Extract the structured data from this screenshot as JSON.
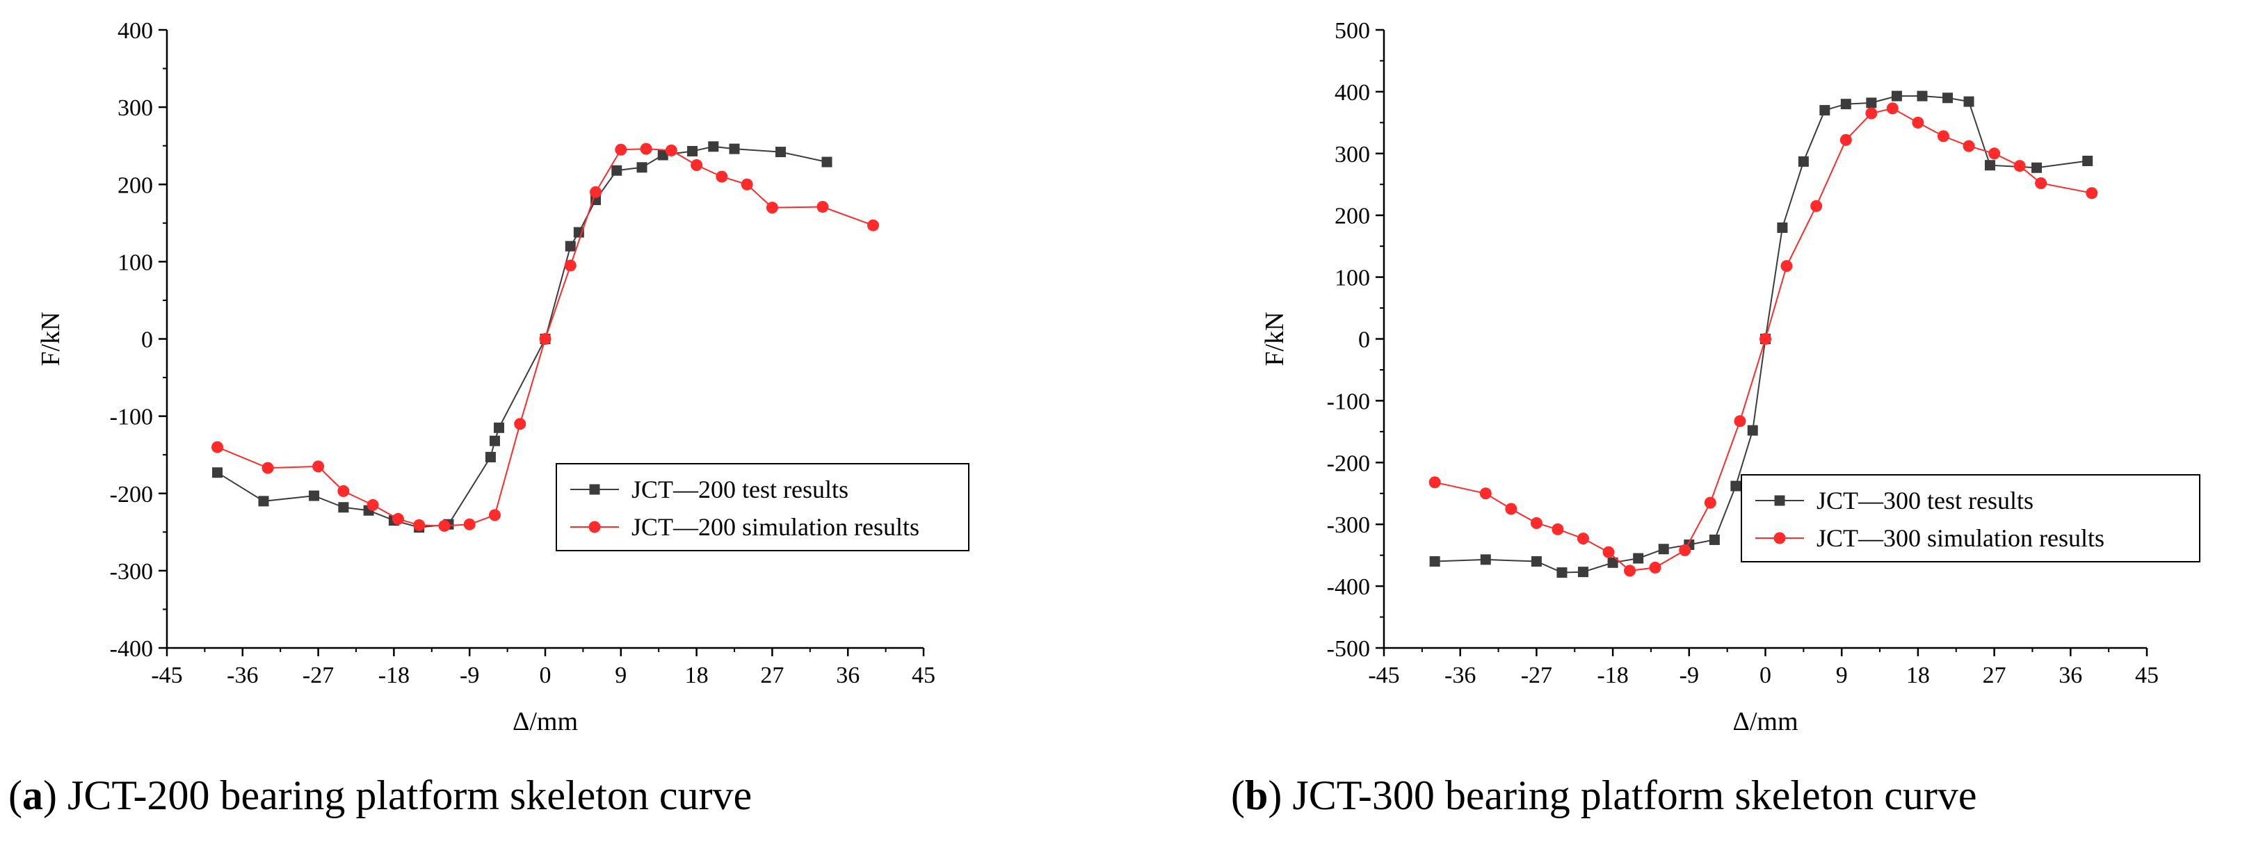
{
  "charts": [
    {
      "caption_letter": "a",
      "caption_text": "JCT-200 bearing platform skeleton curve"
    },
    {
      "caption_letter": "b",
      "caption_text": "JCT-300 bearing platform skeleton curve"
    }
  ],
  "chart_data": [
    {
      "type": "line",
      "title": "",
      "xlabel": "Δ/mm",
      "ylabel": "F/kN",
      "xlim": [
        -45,
        45
      ],
      "ylim": [
        -400,
        400
      ],
      "xticks": [
        "-45",
        "-36",
        "-27",
        "-18",
        "-9",
        "0",
        "9",
        "18",
        "27",
        "36",
        "45"
      ],
      "yticks": [
        "400",
        "300",
        "200",
        "100",
        "0",
        "-100",
        "-200",
        "-300",
        "-400"
      ],
      "legend_position": "lower-right",
      "series": [
        {
          "name": "JCT—200 test results",
          "color": "#3c3c3c",
          "marker": "square",
          "x": [
            -39,
            -33.5,
            -27.5,
            -24,
            -21,
            -18,
            -15,
            -11.5,
            -6.5,
            -6,
            -5.5,
            0,
            3,
            4,
            6,
            8.5,
            11.5,
            14,
            17.5,
            20,
            22.5,
            28,
            33.5
          ],
          "y": [
            -173,
            -210,
            -203,
            -218,
            -222,
            -235,
            -244,
            -240,
            -153,
            -132,
            -115,
            0,
            120,
            138,
            180,
            218,
            222,
            238,
            243,
            249,
            246,
            242,
            229
          ]
        },
        {
          "name": "JCT—200 simulation results",
          "color": "#ff2a2a",
          "marker": "circle",
          "x": [
            -39,
            -33,
            -27,
            -24,
            -20.5,
            -17.5,
            -15,
            -12,
            -9,
            -6,
            -3,
            0,
            3,
            6,
            9,
            12,
            15,
            18,
            21,
            24,
            27,
            33,
            39
          ],
          "y": [
            -140,
            -167,
            -165,
            -197,
            -215,
            -233,
            -241,
            -242,
            -240,
            -228,
            -110,
            0,
            95,
            190,
            245,
            246,
            244,
            225,
            210,
            200,
            170,
            171,
            147
          ]
        }
      ]
    },
    {
      "type": "line",
      "title": "",
      "xlabel": "Δ/mm",
      "ylabel": "F/kN",
      "xlim": [
        -45,
        45
      ],
      "ylim": [
        -500,
        500
      ],
      "xticks": [
        "-45",
        "-36",
        "-27",
        "-18",
        "-9",
        "0",
        "9",
        "18",
        "27",
        "36",
        "45"
      ],
      "yticks": [
        "500",
        "400",
        "300",
        "200",
        "100",
        "0",
        "-100",
        "-200",
        "-300",
        "-400",
        "-500"
      ],
      "legend_position": "lower-right",
      "series": [
        {
          "name": "JCT—300 test results",
          "color": "#3c3c3c",
          "marker": "square",
          "x": [
            -39,
            -33,
            -27,
            -24,
            -21.5,
            -18,
            -15,
            -12,
            -9,
            -6,
            -3.5,
            -1.5,
            0,
            2,
            4.5,
            7,
            9.5,
            12.5,
            15.5,
            18.5,
            21.5,
            24,
            26.5,
            32,
            38
          ],
          "y": [
            -360,
            -357,
            -360,
            -378,
            -377,
            -362,
            -355,
            -340,
            -333,
            -325,
            -238,
            -148,
            0,
            180,
            287,
            370,
            380,
            382,
            393,
            393,
            390,
            384,
            281,
            277,
            288
          ]
        },
        {
          "name": "JCT—300 simulation results",
          "color": "#ff2a2a",
          "marker": "circle",
          "x": [
            -39,
            -33,
            -30,
            -27,
            -24.5,
            -21.5,
            -18.5,
            -16,
            -13,
            -9.5,
            -6.5,
            -3,
            0,
            2.5,
            6,
            9.5,
            12.5,
            15,
            18,
            21,
            24,
            27,
            30,
            32.5,
            38.5
          ],
          "y": [
            -232,
            -250,
            -275,
            -298,
            -308,
            -323,
            -345,
            -375,
            -370,
            -342,
            -265,
            -133,
            0,
            118,
            215,
            322,
            365,
            373,
            350,
            328,
            312,
            300,
            280,
            252,
            236
          ]
        }
      ]
    }
  ]
}
